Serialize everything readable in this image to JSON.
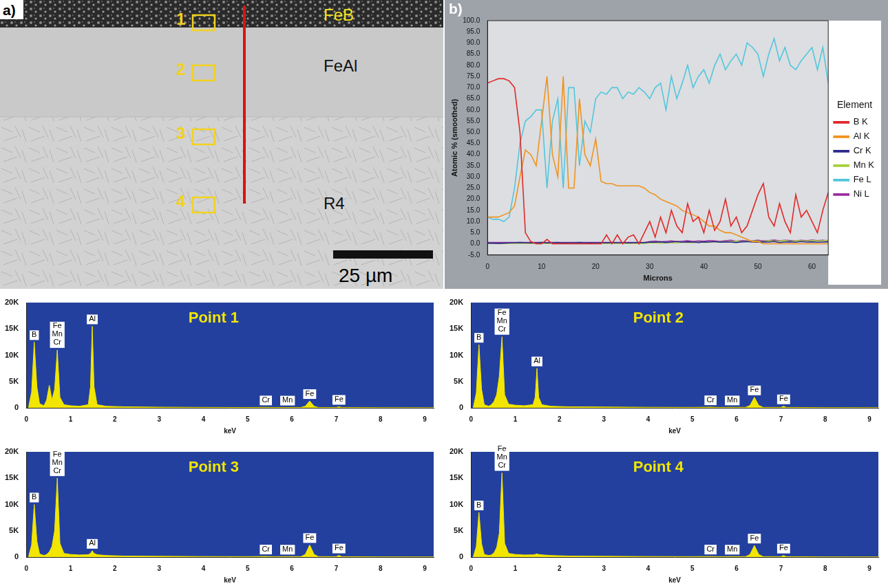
{
  "image_panel": {
    "label": "a)",
    "layers": [
      {
        "name": "FeB",
        "color": "#f5e61e"
      },
      {
        "name": "FeAl",
        "color": "#111111"
      },
      {
        "name": "R4",
        "color": "#111111"
      }
    ],
    "points": [
      "1",
      "2",
      "3",
      "4"
    ],
    "scale_bar": "25 µm"
  },
  "chart_data": [
    {
      "type": "line",
      "panel": "b)",
      "x_label": "Microns",
      "y_label": "Atomic % (smoothed)",
      "legend": "right",
      "legend_title": "Element",
      "grid": false,
      "x": [
        0,
        1,
        2,
        3,
        4,
        5,
        6,
        7,
        8,
        9,
        10,
        11,
        12,
        13,
        14,
        15,
        16,
        17,
        18,
        19,
        20,
        21,
        22,
        23,
        24,
        25,
        26,
        27,
        28,
        29,
        30,
        31,
        32,
        33,
        34,
        35,
        36,
        37,
        38,
        39,
        40,
        41,
        42,
        43,
        44,
        45,
        46,
        47,
        48,
        49,
        50,
        51,
        52,
        53,
        54,
        55,
        56,
        57,
        58,
        59,
        60,
        61,
        62,
        63
      ],
      "xlim": [
        0,
        63
      ],
      "xticks": [
        0,
        10,
        20,
        30,
        40,
        50,
        60
      ],
      "ylim": [
        -5,
        100
      ],
      "yticks": [
        {
          "value": -5,
          "label": "-5.0"
        },
        {
          "value": 0,
          "label": "0.0"
        },
        {
          "value": 5,
          "label": "5.0"
        },
        {
          "value": 10,
          "label": "10.0"
        },
        {
          "value": 15,
          "label": "15.0"
        },
        {
          "value": 20,
          "label": "20.0"
        },
        {
          "value": 25,
          "label": "25.0"
        },
        {
          "value": 30,
          "label": "30.0"
        },
        {
          "value": 35,
          "label": "35.0"
        },
        {
          "value": 40,
          "label": "40.0"
        },
        {
          "value": 45,
          "label": "45.0"
        },
        {
          "value": 50,
          "label": "50.0"
        },
        {
          "value": 55,
          "label": "55.0"
        },
        {
          "value": 60,
          "label": "60.0"
        },
        {
          "value": 65,
          "label": "65.0"
        },
        {
          "value": 70,
          "label": "70.0"
        },
        {
          "value": 75,
          "label": "75.0"
        },
        {
          "value": 80,
          "label": "80.0"
        },
        {
          "value": 85,
          "label": "85.0"
        },
        {
          "value": 90,
          "label": "90.0"
        },
        {
          "value": 95,
          "label": "95.0"
        },
        {
          "value": 100,
          "label": "100.0"
        }
      ],
      "series": [
        {
          "name": "B K",
          "color": "#e02828",
          "values": [
            72,
            73,
            74,
            74,
            73,
            70,
            50,
            5,
            1,
            0,
            0,
            2,
            0,
            0,
            0,
            0,
            0,
            0,
            0,
            0,
            0,
            0,
            4,
            0,
            4,
            0,
            3,
            4,
            0,
            5,
            10,
            3,
            12,
            5,
            15,
            8,
            5,
            18,
            10,
            12,
            5,
            15,
            6,
            10,
            20,
            8,
            12,
            5,
            8,
            15,
            22,
            27,
            12,
            8,
            18,
            10,
            5,
            22,
            12,
            15,
            10,
            5,
            15,
            23
          ]
        },
        {
          "name": "Al K",
          "color": "#f0921e",
          "values": [
            12,
            12,
            12,
            13,
            14,
            17,
            30,
            42,
            40,
            35,
            55,
            75,
            40,
            30,
            75,
            25,
            25,
            65,
            40,
            35,
            47,
            28,
            27,
            27,
            26,
            26,
            26,
            26,
            26,
            25,
            23,
            22,
            20,
            19,
            18,
            17,
            15,
            14,
            13,
            12,
            10,
            8,
            8,
            6,
            5,
            5,
            4,
            3,
            2,
            1,
            1,
            0,
            0,
            0,
            0,
            0,
            0,
            0,
            0,
            0,
            0,
            0,
            0,
            0
          ]
        },
        {
          "name": "Cr K",
          "color": "#2a2a8c",
          "values": [
            0.3,
            0.3,
            0.2,
            0.3,
            0.4,
            0.5,
            0.6,
            0.5,
            0.4,
            0.5,
            0.6,
            0.4,
            0.5,
            0.6,
            0.4,
            0.5,
            0.5,
            0.6,
            0.5,
            0.4,
            0.5,
            0.5,
            0.4,
            0.6,
            0.5,
            0.5,
            0.4,
            0.5,
            0.6,
            0.5,
            0.8,
            0.7,
            0.9,
            0.6,
            0.8,
            1.0,
            0.7,
            0.9,
            0.8,
            0.6,
            0.9,
            0.8,
            1.0,
            0.7,
            0.9,
            0.8,
            0.6,
            0.9,
            1.0,
            0.8,
            0.7,
            0.9,
            0.8,
            1.0,
            0.6,
            0.8,
            0.9,
            0.7,
            1.0,
            0.8,
            0.9,
            0.7,
            0.8,
            0.9
          ]
        },
        {
          "name": "Mn K",
          "color": "#a6d13a",
          "values": [
            0.2,
            0.2,
            0.2,
            0.2,
            0.2,
            0.2,
            0.2,
            0.2,
            0.2,
            0.2,
            0.2,
            0.2,
            0.2,
            0.2,
            0.2,
            0.2,
            0.2,
            0.2,
            0.2,
            0.2,
            0.2,
            0.2,
            0.2,
            0.2,
            0.2,
            0.2,
            0.2,
            0.2,
            0.2,
            0.2,
            0.4,
            0.5,
            0.3,
            0.6,
            0.5,
            0.4,
            0.7,
            0.6,
            0.5,
            0.8,
            0.6,
            0.7,
            0.9,
            0.8,
            1.0,
            0.9,
            1.2,
            1.0,
            1.1,
            1.3,
            1.2,
            1.0,
            1.4,
            1.2,
            1.3,
            1.5,
            1.1,
            1.3,
            1.4,
            1.2,
            1.5,
            1.3,
            1.4,
            1.6
          ]
        },
        {
          "name": "Fe L",
          "color": "#52c6dc",
          "values": [
            12,
            11,
            11,
            10,
            12,
            25,
            45,
            55,
            57,
            60,
            60,
            25,
            55,
            65,
            25,
            70,
            70,
            35,
            55,
            50,
            65,
            68,
            67,
            70,
            70,
            65,
            68,
            67,
            70,
            68,
            65,
            70,
            72,
            60,
            75,
            65,
            72,
            80,
            70,
            75,
            78,
            72,
            80,
            85,
            78,
            82,
            85,
            80,
            90,
            88,
            85,
            75,
            85,
            92,
            82,
            88,
            80,
            78,
            82,
            85,
            88,
            78,
            88,
            72
          ]
        },
        {
          "name": "Ni L",
          "color": "#9b2fa0",
          "values": [
            0.6,
            0.6,
            0.6,
            0.6,
            0.6,
            0.6,
            0.6,
            0.6,
            0.6,
            0.6,
            0.6,
            0.6,
            0.6,
            0.6,
            0.6,
            0.6,
            0.6,
            0.6,
            0.6,
            0.6,
            0.6,
            0.6,
            0.6,
            0.6,
            0.6,
            0.6,
            0.6,
            0.6,
            0.6,
            0.6,
            1.0,
            1.2,
            0.9,
            1.1,
            1.3,
            1.0,
            1.2,
            1.4,
            1.1,
            1.3,
            1.2,
            1.5,
            1.3,
            1.1,
            1.4,
            1.6,
            1.2,
            1.5,
            1.3,
            1.4,
            1.6,
            1.3,
            1.5,
            1.7,
            1.4,
            1.6,
            1.5,
            1.3,
            1.6,
            1.4,
            1.7,
            1.5,
            1.6,
            1.4
          ]
        }
      ]
    },
    {
      "type": "area",
      "title": "Point 1",
      "x_label": "keV",
      "color": "#f2e600",
      "grid": false,
      "x": [
        0.05,
        0.12,
        0.18,
        0.24,
        0.3,
        0.4,
        0.46,
        0.52,
        0.58,
        0.64,
        0.7,
        0.76,
        0.85,
        1.0,
        1.2,
        1.4,
        1.45,
        1.49,
        1.53,
        1.6,
        1.8,
        2.2,
        3,
        4,
        5,
        5.41,
        5.6,
        5.9,
        6.2,
        6.3,
        6.4,
        6.5,
        6.6,
        7.0,
        7.06,
        7.12,
        8,
        9,
        9.2
      ],
      "values": [
        0,
        3000,
        12500,
        4000,
        800,
        400,
        1500,
        4300,
        1500,
        3500,
        11000,
        2000,
        600,
        400,
        300,
        600,
        4000,
        15500,
        4000,
        600,
        300,
        200,
        120,
        80,
        60,
        90,
        50,
        60,
        60,
        300,
        1300,
        300,
        50,
        60,
        200,
        60,
        30,
        20,
        20
      ],
      "xlim": [
        0,
        9.2
      ],
      "xticks": [
        0,
        1,
        2,
        3,
        4,
        5,
        6,
        7,
        8,
        9
      ],
      "ylim": [
        0,
        20000
      ],
      "yticks": [
        0,
        {
          "value": 5000,
          "label": "5K"
        },
        {
          "value": 10000,
          "label": "10K"
        },
        {
          "value": 15000,
          "label": "15K"
        },
        {
          "value": 20000,
          "label": "20K"
        }
      ],
      "peak_labels": [
        {
          "text": [
            "B"
          ],
          "x": 0.18
        },
        {
          "text": [
            "Fe",
            "Mn",
            "Cr"
          ],
          "x": 0.7
        },
        {
          "text": [
            "Al"
          ],
          "x": 1.49
        },
        {
          "text": [
            "Cr"
          ],
          "x": 5.41
        },
        {
          "text": [
            "Mn"
          ],
          "x": 5.9
        },
        {
          "text": [
            "Fe"
          ],
          "x": 6.4
        },
        {
          "text": [
            "Fe"
          ],
          "x": 7.06
        }
      ]
    },
    {
      "type": "area",
      "title": "Point 2",
      "x_label": "keV",
      "color": "#f2e600",
      "grid": false,
      "x": [
        0.05,
        0.12,
        0.18,
        0.24,
        0.3,
        0.4,
        0.46,
        0.52,
        0.58,
        0.64,
        0.7,
        0.76,
        0.85,
        1.0,
        1.2,
        1.4,
        1.45,
        1.49,
        1.53,
        1.6,
        1.8,
        2.2,
        3,
        4,
        5,
        5.41,
        5.6,
        5.9,
        6.2,
        6.3,
        6.4,
        6.5,
        6.6,
        7.0,
        7.06,
        7.12,
        8,
        9,
        9.2
      ],
      "values": [
        0,
        2800,
        12000,
        3500,
        600,
        300,
        600,
        1200,
        2500,
        6000,
        13500,
        2500,
        700,
        500,
        400,
        600,
        2000,
        7500,
        2000,
        600,
        300,
        200,
        150,
        100,
        80,
        120,
        70,
        90,
        80,
        450,
        2000,
        450,
        80,
        80,
        300,
        80,
        40,
        30,
        25
      ],
      "xlim": [
        0,
        9.2
      ],
      "xticks": [
        0,
        1,
        2,
        3,
        4,
        5,
        6,
        7,
        8,
        9
      ],
      "ylim": [
        0,
        20000
      ],
      "yticks": [
        0,
        {
          "value": 5000,
          "label": "5K"
        },
        {
          "value": 10000,
          "label": "10K"
        },
        {
          "value": 15000,
          "label": "15K"
        },
        {
          "value": 20000,
          "label": "20K"
        }
      ],
      "peak_labels": [
        {
          "text": [
            "B"
          ],
          "x": 0.18
        },
        {
          "text": [
            "Fe",
            "Mn",
            "Cr"
          ],
          "x": 0.7
        },
        {
          "text": [
            "Al"
          ],
          "x": 1.49
        },
        {
          "text": [
            "Cr"
          ],
          "x": 5.41
        },
        {
          "text": [
            "Mn"
          ],
          "x": 5.9
        },
        {
          "text": [
            "Fe"
          ],
          "x": 6.4
        },
        {
          "text": [
            "Fe"
          ],
          "x": 7.06
        }
      ]
    },
    {
      "type": "area",
      "title": "Point 3",
      "x_label": "keV",
      "color": "#f2e600",
      "grid": false,
      "x": [
        0.05,
        0.12,
        0.18,
        0.24,
        0.3,
        0.4,
        0.46,
        0.52,
        0.58,
        0.64,
        0.7,
        0.76,
        0.85,
        1.0,
        1.2,
        1.4,
        1.45,
        1.49,
        1.53,
        1.6,
        1.8,
        2.2,
        3,
        4,
        5,
        5.41,
        5.6,
        5.9,
        6.2,
        6.3,
        6.4,
        6.5,
        6.6,
        7.0,
        7.06,
        7.12,
        8,
        9,
        9.2
      ],
      "values": [
        0,
        2300,
        10000,
        3000,
        600,
        300,
        500,
        1000,
        2000,
        5000,
        15000,
        2600,
        700,
        500,
        400,
        450,
        700,
        1200,
        700,
        450,
        300,
        200,
        150,
        100,
        80,
        120,
        70,
        90,
        80,
        500,
        2300,
        500,
        80,
        80,
        320,
        80,
        40,
        30,
        25
      ],
      "xlim": [
        0,
        9.2
      ],
      "xticks": [
        0,
        1,
        2,
        3,
        4,
        5,
        6,
        7,
        8,
        9
      ],
      "ylim": [
        0,
        20000
      ],
      "yticks": [
        0,
        {
          "value": 5000,
          "label": "5K"
        },
        {
          "value": 10000,
          "label": "10K"
        },
        {
          "value": 15000,
          "label": "15K"
        },
        {
          "value": 20000,
          "label": "20K"
        }
      ],
      "peak_labels": [
        {
          "text": [
            "B"
          ],
          "x": 0.18
        },
        {
          "text": [
            "Fe",
            "Mn",
            "Cr"
          ],
          "x": 0.7
        },
        {
          "text": [
            "Al"
          ],
          "x": 1.49
        },
        {
          "text": [
            "Cr"
          ],
          "x": 5.41
        },
        {
          "text": [
            "Mn"
          ],
          "x": 5.9
        },
        {
          "text": [
            "Fe"
          ],
          "x": 6.4
        },
        {
          "text": [
            "Fe"
          ],
          "x": 7.06
        }
      ]
    },
    {
      "type": "area",
      "title": "Point 4",
      "x_label": "keV",
      "color": "#f2e600",
      "grid": false,
      "x": [
        0.05,
        0.12,
        0.18,
        0.24,
        0.3,
        0.4,
        0.46,
        0.52,
        0.58,
        0.64,
        0.7,
        0.76,
        0.85,
        1.0,
        1.2,
        1.4,
        1.45,
        1.49,
        1.53,
        1.6,
        1.8,
        2.2,
        3,
        4,
        5,
        5.41,
        5.6,
        5.9,
        6.2,
        6.3,
        6.4,
        6.5,
        6.6,
        7.0,
        7.06,
        7.12,
        8,
        9,
        9.2
      ],
      "values": [
        0,
        2000,
        8500,
        2500,
        500,
        300,
        400,
        800,
        1800,
        4500,
        16000,
        2600,
        700,
        500,
        400,
        420,
        500,
        600,
        500,
        420,
        300,
        200,
        150,
        100,
        80,
        110,
        70,
        90,
        80,
        480,
        2200,
        480,
        80,
        80,
        300,
        80,
        40,
        30,
        25
      ],
      "xlim": [
        0,
        9.2
      ],
      "xticks": [
        0,
        1,
        2,
        3,
        4,
        5,
        6,
        7,
        8,
        9
      ],
      "ylim": [
        0,
        20000
      ],
      "yticks": [
        0,
        {
          "value": 5000,
          "label": "5K"
        },
        {
          "value": 10000,
          "label": "10K"
        },
        {
          "value": 15000,
          "label": "15K"
        },
        {
          "value": 20000,
          "label": "20K"
        }
      ],
      "peak_labels": [
        {
          "text": [
            "B"
          ],
          "x": 0.18
        },
        {
          "text": [
            "Fe",
            "Mn",
            "Cr"
          ],
          "x": 0.7
        },
        {
          "text": [
            "Cr"
          ],
          "x": 5.41
        },
        {
          "text": [
            "Mn"
          ],
          "x": 5.9
        },
        {
          "text": [
            "Fe"
          ],
          "x": 6.4
        },
        {
          "text": [
            "Fe"
          ],
          "x": 7.06
        }
      ]
    }
  ]
}
